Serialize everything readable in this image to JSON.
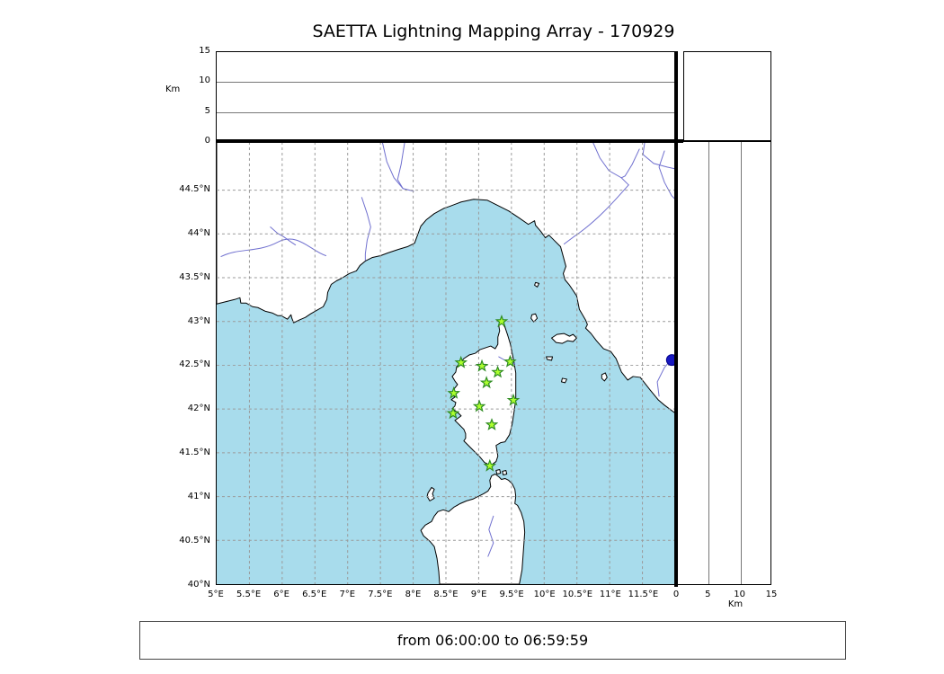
{
  "title": "SAETTA Lightning Mapping Array - 170929",
  "footer": {
    "time_range": "from 06:00:00 to 06:59:59"
  },
  "axes": {
    "km_label": "Km",
    "alt_ticks": [
      {
        "v": 0,
        "label": "0"
      },
      {
        "v": 5,
        "label": "5"
      },
      {
        "v": 10,
        "label": "10"
      },
      {
        "v": 15,
        "label": "15"
      }
    ],
    "lon_ticks": [
      {
        "v": 5,
        "label": "5°E"
      },
      {
        "v": 5.5,
        "label": "5.5°E"
      },
      {
        "v": 6,
        "label": "6°E"
      },
      {
        "v": 6.5,
        "label": "6.5°E"
      },
      {
        "v": 7,
        "label": "7°E"
      },
      {
        "v": 7.5,
        "label": "7.5°E"
      },
      {
        "v": 8,
        "label": "8°E"
      },
      {
        "v": 8.5,
        "label": "8.5°E"
      },
      {
        "v": 9,
        "label": "9°E"
      },
      {
        "v": 9.5,
        "label": "9.5°E"
      },
      {
        "v": 10,
        "label": "10°E"
      },
      {
        "v": 10.5,
        "label": "10.5°E"
      },
      {
        "v": 11,
        "label": "11°E"
      },
      {
        "v": 11.5,
        "label": "11.5°E"
      }
    ],
    "lat_ticks": [
      {
        "v": 44.5,
        "label": "44.5°N"
      },
      {
        "v": 44,
        "label": "44°N"
      },
      {
        "v": 43.5,
        "label": "43.5°N"
      },
      {
        "v": 43,
        "label": "43°N"
      },
      {
        "v": 42.5,
        "label": "42.5°N"
      },
      {
        "v": 42,
        "label": "42°N"
      },
      {
        "v": 41.5,
        "label": "41.5°N"
      },
      {
        "v": 41,
        "label": "41°N"
      },
      {
        "v": 40.5,
        "label": "40.5°N"
      },
      {
        "v": 40,
        "label": "40°N"
      }
    ],
    "lon_grid": [
      5.5,
      6,
      6.5,
      7,
      7.5,
      8,
      8.5,
      9,
      9.5,
      10,
      10.5,
      11,
      11.5
    ],
    "lat_grid": [
      40.5,
      41,
      41.5,
      42,
      42.5,
      43,
      43.5,
      44,
      44.5
    ]
  },
  "chart_data": {
    "type": "scatter",
    "title": "SAETTA Lightning Mapping Array - 170929",
    "map": {
      "lon_min": 5,
      "lon_max": 12,
      "lat_min": 40,
      "lat_max": 45.05
    },
    "alt_axis": {
      "min": 0,
      "max": 15,
      "ticks": [
        0,
        5,
        10,
        15
      ],
      "gridlines": [
        5,
        10
      ],
      "label": "Km"
    },
    "stations": [
      {
        "lon": 9.35,
        "lat": 43.0
      },
      {
        "lon": 8.73,
        "lat": 42.53
      },
      {
        "lon": 9.05,
        "lat": 42.49
      },
      {
        "lon": 9.48,
        "lat": 42.54
      },
      {
        "lon": 9.29,
        "lat": 42.42
      },
      {
        "lon": 9.12,
        "lat": 42.3
      },
      {
        "lon": 8.62,
        "lat": 42.18
      },
      {
        "lon": 9.53,
        "lat": 42.1
      },
      {
        "lon": 9.01,
        "lat": 42.03
      },
      {
        "lon": 8.61,
        "lat": 41.95
      },
      {
        "lon": 9.2,
        "lat": 41.82
      },
      {
        "lon": 9.17,
        "lat": 41.35
      }
    ],
    "detections": [
      {
        "lon": 11.95,
        "lat": 42.56
      }
    ],
    "time_range": "from 06:00:00 to 06:59:59"
  },
  "colors": {
    "sea": "#a8dcec",
    "land": "#ffffff",
    "coast": "#000000",
    "river": "#7070cf",
    "grid": "#9a9a9a",
    "star_fill": "#adff2f",
    "star_edge": "#2e8b22",
    "dot": "#1818c0"
  }
}
